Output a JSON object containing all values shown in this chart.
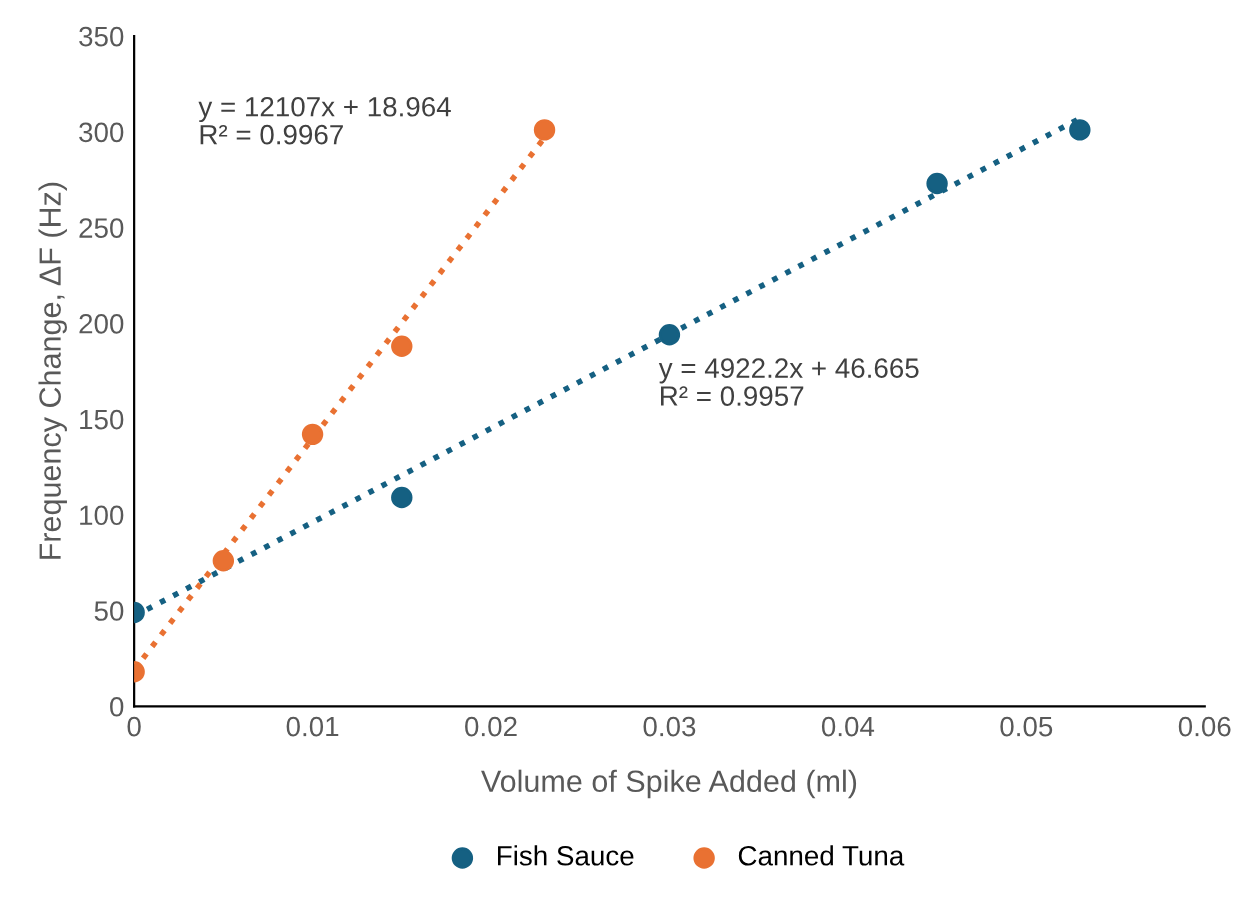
{
  "chart_data": {
    "type": "scatter",
    "xlabel": "Volume of Spike Added (ml)",
    "ylabel": "Frequency Change, ΔF (Hz)",
    "xlim": [
      0,
      0.06
    ],
    "xticks": [
      0,
      0.01,
      0.02,
      0.03,
      0.04,
      0.05,
      0.06
    ],
    "ylim": [
      0,
      350
    ],
    "yticks": [
      0,
      50,
      100,
      150,
      200,
      250,
      300,
      350
    ],
    "grid": false,
    "legend": "bottom",
    "marker": "circle",
    "series": [
      {
        "name": "Fish Sauce",
        "color": "#156082",
        "x": [
          0,
          0.015,
          0.03,
          0.045,
          0.053
        ],
        "values": [
          49,
          109,
          194,
          273,
          301
        ]
      },
      {
        "name": "Canned Tuna",
        "color": "#e97132",
        "x": [
          0,
          0.005,
          0.01,
          0.015,
          0.023
        ],
        "values": [
          18,
          76,
          142,
          188,
          301
        ]
      },
      {
        "type": "line",
        "line_style": "dotted",
        "marker": "none",
        "color": "#156082",
        "x": [
          0,
          0.053
        ],
        "values": [
          47,
          307
        ]
      },
      {
        "type": "line",
        "line_style": "dotted",
        "marker": "none",
        "color": "#e97132",
        "x": [
          0,
          0.023
        ],
        "values": [
          19,
          297
        ]
      }
    ],
    "annotations": [
      "y = 12107x + 18.964\nR² = 0.9967",
      "y = 4922.2x + 46.665\nR² = 0.9957"
    ]
  }
}
